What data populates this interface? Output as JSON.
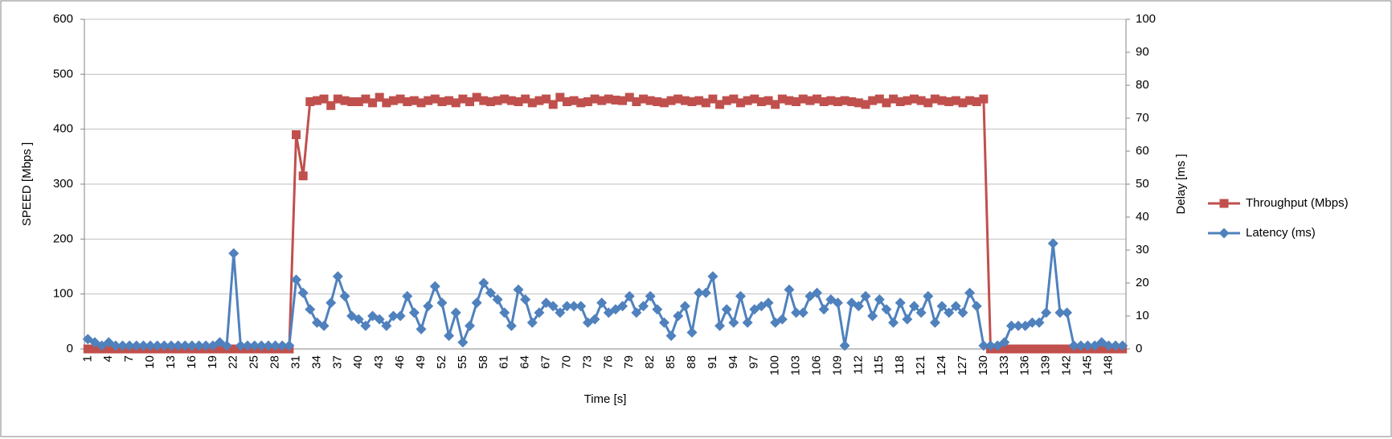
{
  "chart_data": {
    "type": "line",
    "categories": [
      1,
      null,
      null,
      4,
      null,
      null,
      7,
      null,
      null,
      10,
      null,
      null,
      13,
      null,
      null,
      16,
      null,
      null,
      19,
      null,
      null,
      22,
      null,
      null,
      25,
      null,
      null,
      28,
      null,
      null,
      31,
      null,
      null,
      34,
      null,
      null,
      37,
      null,
      null,
      40,
      null,
      null,
      43,
      null,
      null,
      46,
      null,
      null,
      49,
      null,
      null,
      52,
      null,
      null,
      55,
      null,
      null,
      58,
      null,
      null,
      61,
      null,
      null,
      64,
      null,
      null,
      67,
      null,
      null,
      70,
      null,
      null,
      73,
      null,
      null,
      76,
      null,
      null,
      79,
      null,
      null,
      82,
      null,
      null,
      85,
      null,
      null,
      88,
      null,
      null,
      91,
      null,
      null,
      94,
      null,
      null,
      97,
      null,
      null,
      100,
      null,
      null,
      103,
      null,
      null,
      106,
      null,
      null,
      109,
      null,
      null,
      112,
      null,
      null,
      115,
      null,
      null,
      118,
      null,
      null,
      121,
      null,
      null,
      124,
      null,
      null,
      127,
      null,
      null,
      130,
      null,
      null,
      133,
      null,
      null,
      136,
      null,
      null,
      139,
      null,
      null,
      142,
      null,
      null,
      145,
      null,
      null,
      148,
      null,
      null
    ],
    "series": [
      {
        "name": "Throughput (Mbps)",
        "color": "#c0504d",
        "marker": "square",
        "values": [
          0,
          0,
          0,
          0,
          0,
          0,
          0,
          0,
          0,
          0,
          0,
          0,
          0,
          0,
          0,
          0,
          0,
          0,
          0,
          0,
          0,
          0,
          0,
          0,
          0,
          0,
          0,
          0,
          0,
          0,
          390,
          315,
          450,
          452,
          455,
          443,
          455,
          452,
          450,
          450,
          455,
          448,
          458,
          448,
          452,
          455,
          450,
          452,
          448,
          452,
          455,
          450,
          452,
          448,
          455,
          450,
          458,
          452,
          450,
          452,
          455,
          452,
          450,
          455,
          448,
          452,
          455,
          445,
          458,
          450,
          452,
          448,
          450,
          455,
          452,
          455,
          453,
          452,
          458,
          450,
          455,
          452,
          450,
          448,
          452,
          455,
          452,
          450,
          452,
          448,
          455,
          445,
          452,
          455,
          448,
          452,
          455,
          450,
          452,
          445,
          455,
          452,
          450,
          455,
          452,
          455,
          450,
          452,
          450,
          452,
          450,
          448,
          445,
          452,
          455,
          448,
          455,
          450,
          452,
          455,
          452,
          448,
          455,
          452,
          450,
          452,
          448,
          452,
          450,
          455,
          0,
          0,
          0,
          0,
          0,
          0,
          0,
          0,
          0,
          0,
          0,
          0,
          0,
          0,
          0,
          0,
          0,
          0,
          0,
          0
        ]
      },
      {
        "name": "Latency (ms)",
        "color": "#4f81bd",
        "marker": "diamond",
        "axis": "y2",
        "values": [
          3,
          2,
          1,
          2,
          1,
          1,
          1,
          1,
          1,
          1,
          1,
          1,
          1,
          1,
          1,
          1,
          1,
          1,
          1,
          2,
          1,
          29,
          1,
          1,
          1,
          1,
          1,
          1,
          1,
          1,
          21,
          17,
          12,
          8,
          7,
          14,
          22,
          16,
          10,
          9,
          7,
          10,
          9,
          7,
          10,
          10,
          16,
          11,
          6,
          13,
          19,
          14,
          4,
          11,
          2,
          7,
          14,
          20,
          17,
          15,
          11,
          7,
          18,
          15,
          8,
          11,
          14,
          13,
          11,
          13,
          13,
          13,
          8,
          9,
          14,
          11,
          12,
          13,
          16,
          11,
          13,
          16,
          12,
          8,
          4,
          10,
          13,
          5,
          17,
          17,
          22,
          7,
          12,
          8,
          16,
          8,
          12,
          13,
          14,
          8,
          9,
          18,
          11,
          11,
          16,
          17,
          12,
          15,
          14,
          1,
          14,
          13,
          16,
          10,
          15,
          12,
          8,
          14,
          9,
          13,
          11,
          16,
          8,
          13,
          11,
          13,
          11,
          17,
          13,
          1,
          1,
          1,
          2,
          7,
          7,
          7,
          8,
          8,
          11,
          32,
          11,
          11,
          1,
          1,
          1,
          1,
          2,
          1,
          1,
          1
        ]
      }
    ],
    "x_label": "Time [s]",
    "y_label": "SPEED [Mbps ]",
    "y2_label": "Delay  [ms ]",
    "ylim": [
      0,
      600
    ],
    "yticks": [
      0,
      100,
      200,
      300,
      400,
      500,
      600
    ],
    "y2lim": [
      0,
      100
    ],
    "y2ticks": [
      0,
      10,
      20,
      30,
      40,
      50,
      60,
      70,
      80,
      90,
      100
    ],
    "grid": true,
    "legend": "right"
  }
}
